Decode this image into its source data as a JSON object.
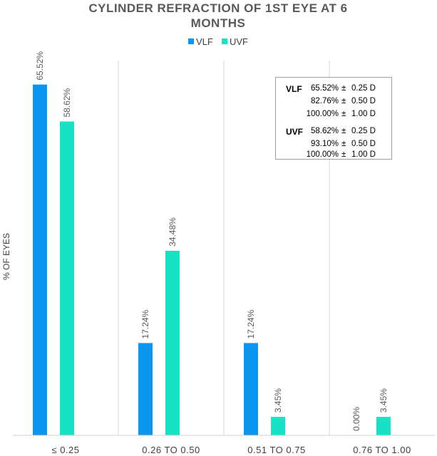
{
  "chart_data": {
    "type": "bar",
    "title_lines": [
      "CYLINDER REFRACTION OF 1ST EYE AT 6",
      "MONTHS"
    ],
    "ylabel": "% OF EYES",
    "categories": [
      "≤ 0.25",
      "0.26 TO 0.50",
      "0.51 TO 0.75",
      "0.76 TO 1.00"
    ],
    "ylim": [
      0,
      70
    ],
    "series": [
      {
        "name": "VLF",
        "color": "#0a95f0",
        "values": [
          65.52,
          17.24,
          17.24,
          0.0
        ],
        "labels": [
          "65.52%",
          "17.24%",
          "17.24%",
          "0.00%"
        ]
      },
      {
        "name": "UVF",
        "color": "#16e3c6",
        "values": [
          58.62,
          34.48,
          3.45,
          3.45
        ],
        "labels": [
          "58.62%",
          "34.48%",
          "3.45%",
          "3.45%"
        ]
      }
    ],
    "annotation": {
      "groups": [
        {
          "series": "VLF",
          "rows": [
            {
              "pct": "65.52%",
              "pm": "±",
              "val": "0.25 D"
            },
            {
              "pct": "82.76%",
              "pm": "±",
              "val": "0.50 D"
            },
            {
              "pct": "100.00%",
              "pm": "±",
              "val": "1.00 D"
            }
          ]
        },
        {
          "series": "UVF",
          "rows": [
            {
              "pct": "58.62%",
              "pm": "±",
              "val": "0.25 D"
            },
            {
              "pct": "93.10%",
              "pm": "±",
              "val": "0.50 D"
            },
            {
              "pct": "100.00%",
              "pm": "±",
              "val": "1.00 D"
            }
          ]
        }
      ]
    }
  }
}
